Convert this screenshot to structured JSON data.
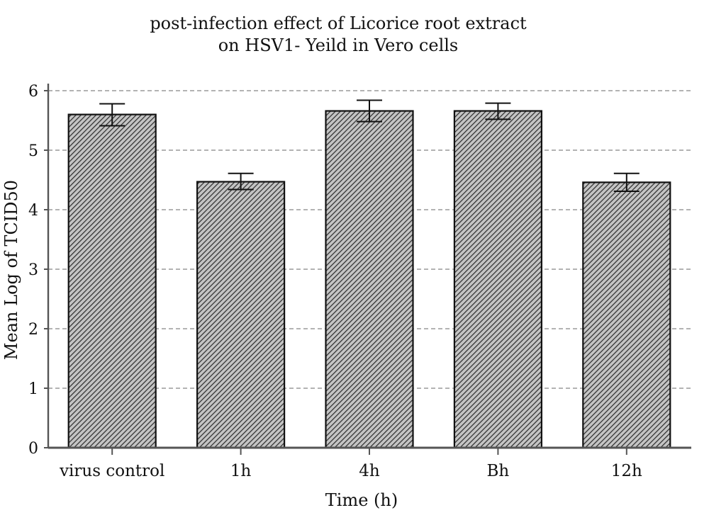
{
  "chart_data": {
    "type": "bar",
    "title": [
      "post-infection effect of Licorice root extract",
      "on HSV1- Yeild in Vero cells"
    ],
    "xlabel": "Time (h)",
    "ylabel": "Mean Log of TCID50",
    "categories": [
      "virus control",
      "1h",
      "4h",
      "Bh",
      "12h"
    ],
    "values": [
      5.6,
      4.47,
      5.66,
      5.66,
      4.46
    ],
    "errors": [
      {
        "low": 5.41,
        "high": 5.78
      },
      {
        "low": 4.34,
        "high": 4.61
      },
      {
        "low": 5.48,
        "high": 5.84
      },
      {
        "low": 5.52,
        "high": 5.79
      },
      {
        "low": 4.31,
        "high": 4.61
      }
    ],
    "ylim": [
      0,
      6
    ],
    "yticks": [
      "0",
      "1",
      "2",
      "3",
      "4",
      "5",
      "6"
    ],
    "grid": "horizontal-dashed",
    "colors": {
      "bar_fill": "#bdbdbd",
      "bar_hatch": "#2a2a2a",
      "grid": "#9a9a9a",
      "axis": "#555555"
    }
  }
}
